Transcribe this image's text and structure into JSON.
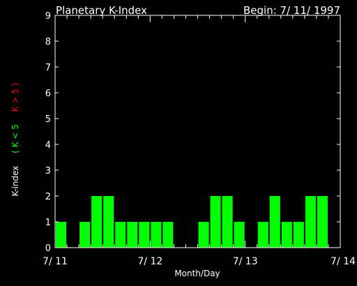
{
  "chart_data": {
    "type": "bar",
    "title": "Planetary K-Index",
    "begin_label": "Begin: 7/ 11/ 1997",
    "xlabel": "Month/Day",
    "ylabel_parts": [
      {
        "text": "K-index",
        "color": "#ffffff"
      },
      {
        "text": "( K < 5",
        "color": "#00ff00"
      },
      {
        "text": "K > 5 )",
        "color": "#ff0000"
      }
    ],
    "ylim": [
      0,
      9
    ],
    "yticks": [
      "0",
      "1",
      "2",
      "3",
      "4",
      "5",
      "6",
      "7",
      "8",
      "9"
    ],
    "xticks": [
      "7/ 11",
      "7/ 12",
      "7/ 13",
      "7/ 14"
    ],
    "slots_per_day": 8,
    "days": 3,
    "values": [
      1,
      null,
      1,
      2,
      2,
      1,
      1,
      1,
      1,
      1,
      null,
      null,
      1,
      2,
      2,
      1,
      null,
      1,
      2,
      1,
      1,
      2,
      2,
      null
    ],
    "bar_color": "#00ff00",
    "axis_color": "#ffffff",
    "background": "#000000"
  }
}
